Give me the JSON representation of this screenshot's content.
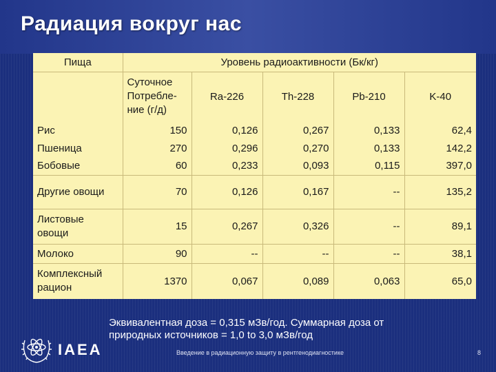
{
  "slide": {
    "title": "Радиация вокруг нас",
    "footer_line1": "Эквивалентная доза = 0,315 мЗв/год. Суммарная доза от",
    "footer_line2": "природных источников = 1,0 to 3,0 мЗв/год",
    "logo_text": "IAEA",
    "footnote": "Введение в радиационную защиту в рентгенодиагностике",
    "page_number": "8"
  },
  "table": {
    "header_food": "Пища",
    "header_level": "Уровень радиоактивности (Бк/кг)",
    "header_daily_line1": "Суточное",
    "header_daily_line2": "Потребле-",
    "header_daily_line3": "ние (г/д)",
    "col_ra": "Ra-226",
    "col_th": "Th-228",
    "col_pb": "Pb-210",
    "col_k": "K-40",
    "rows": [
      {
        "food": "Рис",
        "daily": "150",
        "ra": "0,126",
        "th": "0,267",
        "pb": "0,133",
        "k": "62,4"
      },
      {
        "food": "Пшеница",
        "daily": "270",
        "ra": "0,296",
        "th": "0,270",
        "pb": "0,133",
        "k": "142,2"
      },
      {
        "food": "Бобовые",
        "daily": "60",
        "ra": "0,233",
        "th": "0,093",
        "pb": "0,115",
        "k": "397,0"
      },
      {
        "food": "Другие овощи",
        "daily": "70",
        "ra": "0,126",
        "th": "0,167",
        "pb": "--",
        "k": "135,2"
      },
      {
        "food_line1": "Листовые",
        "food_line2": "овощи",
        "daily": "15",
        "ra": "0,267",
        "th": "0,326",
        "pb": "--",
        "k": "89,1"
      },
      {
        "food": "Молоко",
        "daily": "90",
        "ra": "--",
        "th": "--",
        "pb": "--",
        "k": "38,1"
      },
      {
        "food_line1": "Комплексный",
        "food_line2": "рацион",
        "daily": "1370",
        "ra": "0,067",
        "th": "0,089",
        "pb": "0,063",
        "k": "65,0"
      }
    ]
  },
  "colors": {
    "background": "#1b2f7e",
    "table_fill": "#fbf3b4",
    "title_text": "#ffffff"
  },
  "icons": {
    "logo": "iaea-atom-laurel-icon"
  }
}
